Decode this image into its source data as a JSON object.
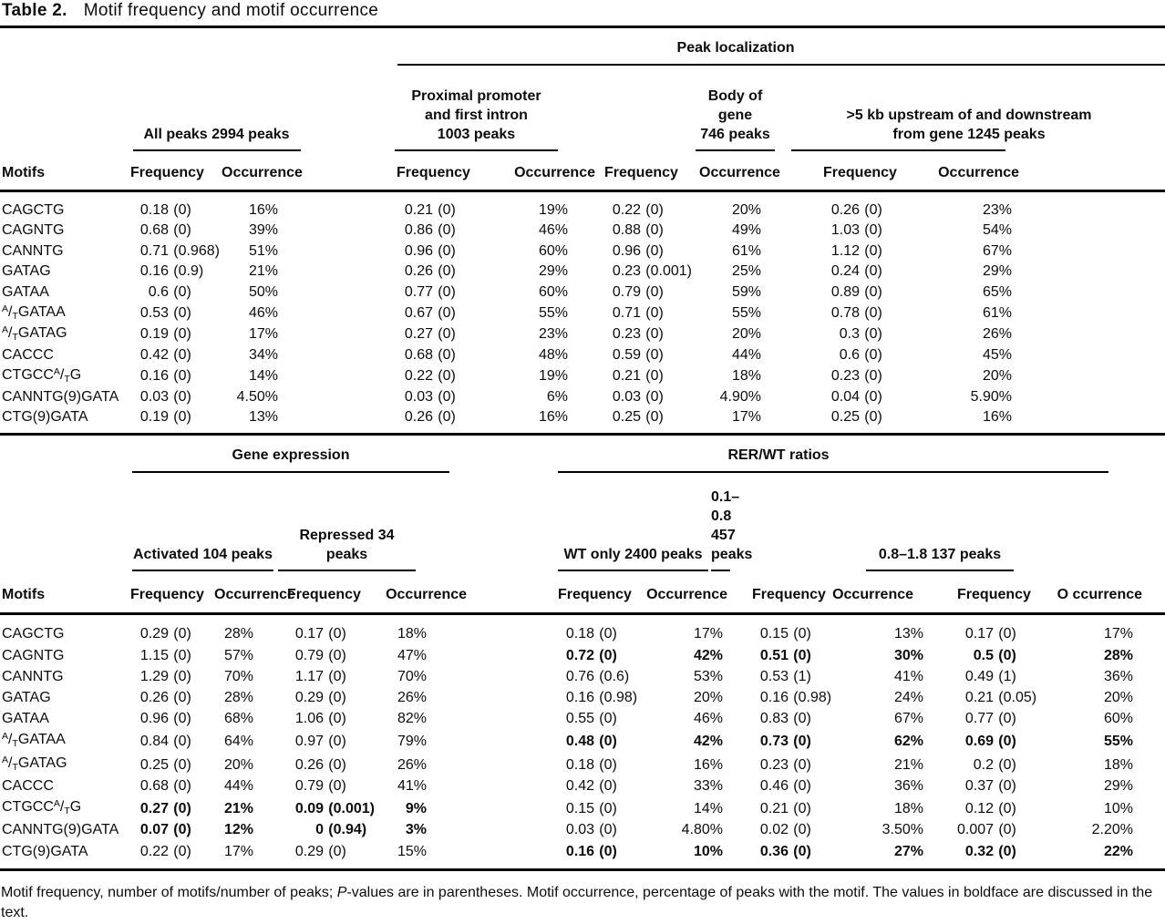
{
  "title": {
    "label": "Table 2.",
    "text": "Motif frequency and motif occurrence"
  },
  "upper_table": {
    "span_header": "Peak localization",
    "motifs_header": "Motifs",
    "groups": [
      {
        "lines": [
          "All peaks 2994 peaks"
        ],
        "freq_header": "Frequency",
        "occ_header": "Occurrence"
      },
      {
        "lines": [
          "Proximal promoter",
          "and first intron",
          "1003 peaks"
        ],
        "freq_header": "Frequency",
        "occ_header": "Occurrence"
      },
      {
        "lines": [
          "Body of gene",
          "746 peaks"
        ],
        "freq_header": "Frequency",
        "occ_header": "Occurrence"
      },
      {
        "lines": [
          ">5 kb upstream of and downstream",
          "from gene 1245 peaks"
        ],
        "freq_header": "Frequency",
        "occ_header": "Occurrence"
      }
    ],
    "rows": [
      {
        "motif": "CAGCTG",
        "cells": [
          {
            "f": "0.18 (0)",
            "o": "16%"
          },
          {
            "f": "0.21 (0)",
            "o": "19%"
          },
          {
            "f": "0.22 (0)",
            "o": "20%"
          },
          {
            "f": "0.26 (0)",
            "o": "23%"
          }
        ]
      },
      {
        "motif": "CAGNTG",
        "cells": [
          {
            "f": "0.68 (0)",
            "o": "39%"
          },
          {
            "f": "0.86 (0)",
            "o": "46%"
          },
          {
            "f": "0.88 (0)",
            "o": "49%"
          },
          {
            "f": "1.03 (0)",
            "o": "54%"
          }
        ]
      },
      {
        "motif": "CANNTG",
        "cells": [
          {
            "f": "0.71 (0.968)",
            "o": "51%"
          },
          {
            "f": "0.96 (0)",
            "o": "60%"
          },
          {
            "f": "0.96 (0)",
            "o": "61%"
          },
          {
            "f": "1.12 (0)",
            "o": "67%"
          }
        ]
      },
      {
        "motif": "GATAG",
        "cells": [
          {
            "f": "0.16 (0.9)",
            "o": "21%"
          },
          {
            "f": "0.26 (0)",
            "o": "29%"
          },
          {
            "f": "0.23 (0.001)",
            "o": "25%"
          },
          {
            "f": "0.24 (0)",
            "o": "29%"
          }
        ]
      },
      {
        "motif": "GATAA",
        "cells": [
          {
            "f": "0.6 (0)",
            "o": "50%"
          },
          {
            "f": "0.77 (0)",
            "o": "60%"
          },
          {
            "f": "0.79 (0)",
            "o": "59%"
          },
          {
            "f": "0.89 (0)",
            "o": "65%"
          }
        ]
      },
      {
        "motif": "[A/T]GATAA",
        "cells": [
          {
            "f": "0.53 (0)",
            "o": "46%"
          },
          {
            "f": "0.67 (0)",
            "o": "55%"
          },
          {
            "f": "0.71 (0)",
            "o": "55%"
          },
          {
            "f": "0.78 (0)",
            "o": "61%"
          }
        ]
      },
      {
        "motif": "[A/T]GATAG",
        "cells": [
          {
            "f": "0.19 (0)",
            "o": "17%"
          },
          {
            "f": "0.27 (0)",
            "o": "23%"
          },
          {
            "f": "0.23 (0)",
            "o": "20%"
          },
          {
            "f": "0.3 (0)",
            "o": "26%"
          }
        ]
      },
      {
        "motif": "CACCC",
        "cells": [
          {
            "f": "0.42 (0)",
            "o": "34%"
          },
          {
            "f": "0.68 (0)",
            "o": "48%"
          },
          {
            "f": "0.59 (0)",
            "o": "44%"
          },
          {
            "f": "0.6 (0)",
            "o": "45%"
          }
        ]
      },
      {
        "motif": "CTGCC[A/T]G",
        "cells": [
          {
            "f": "0.16 (0)",
            "o": "14%"
          },
          {
            "f": "0.22 (0)",
            "o": "19%"
          },
          {
            "f": "0.21 (0)",
            "o": "18%"
          },
          {
            "f": "0.23 (0)",
            "o": "20%"
          }
        ]
      },
      {
        "motif": "CANNTG(9)GATA",
        "cells": [
          {
            "f": "0.03 (0)",
            "o": "4.50%"
          },
          {
            "f": "0.03 (0)",
            "o": "6%"
          },
          {
            "f": "0.03 (0)",
            "o": "4.90%"
          },
          {
            "f": "0.04 (0)",
            "o": "5.90%"
          }
        ]
      },
      {
        "motif": "CTG(9)GATA",
        "cells": [
          {
            "f": "0.19 (0)",
            "o": "13%"
          },
          {
            "f": "0.26 (0)",
            "o": "16%"
          },
          {
            "f": "0.25 (0)",
            "o": "17%"
          },
          {
            "f": "0.25 (0)",
            "o": "16%"
          }
        ]
      }
    ]
  },
  "lower_table": {
    "span_headers": [
      {
        "label": "Gene expression",
        "span": 2
      },
      {
        "label": "RER/WT ratios",
        "span": 3
      }
    ],
    "motifs_header": "Motifs",
    "groups": [
      {
        "lines": [
          "Activated 104 peaks"
        ],
        "freq_header": "Frequency",
        "occ_header": "Occurrence"
      },
      {
        "lines": [
          "Repressed 34 peaks"
        ],
        "freq_header": "Frequency",
        "occ_header": "Occurrence"
      },
      {
        "lines": [
          "WT only 2400 peaks"
        ],
        "freq_header": "Frequency",
        "occ_header": "Occurrence"
      },
      {
        "lines": [
          "0.1–0.8 457 peaks"
        ],
        "freq_header": "Frequency",
        "occ_header": "Occurrence"
      },
      {
        "lines": [
          "0.8–1.8 137 peaks"
        ],
        "freq_header": "Frequency",
        "occ_header": "O ccurrence"
      }
    ],
    "rows": [
      {
        "motif": "CAGCTG",
        "cells": [
          {
            "f": "0.29 (0)",
            "o": "28%"
          },
          {
            "f": "0.17 (0)",
            "o": "18%"
          },
          {
            "f": "0.18 (0)",
            "o": "17%"
          },
          {
            "f": "0.15 (0)",
            "o": "13%"
          },
          {
            "f": "0.17 (0)",
            "o": "17%"
          }
        ]
      },
      {
        "motif": "CAGNTG",
        "cells": [
          {
            "f": "1.15 (0)",
            "o": "57%"
          },
          {
            "f": "0.79 (0)",
            "o": "47%"
          },
          {
            "f": "0.72 (0)",
            "o": "42%",
            "b": true
          },
          {
            "f": "0.51 (0)",
            "o": "30%",
            "b": true
          },
          {
            "f": "0.5 (0)",
            "o": "28%",
            "b": true
          }
        ]
      },
      {
        "motif": "CANNTG",
        "cells": [
          {
            "f": "1.29 (0)",
            "o": "70%"
          },
          {
            "f": "1.17 (0)",
            "o": "70%"
          },
          {
            "f": "0.76 (0.6)",
            "o": "53%"
          },
          {
            "f": "0.53 (1)",
            "o": "41%"
          },
          {
            "f": "0.49 (1)",
            "o": "36%"
          }
        ]
      },
      {
        "motif": "GATAG",
        "cells": [
          {
            "f": "0.26 (0)",
            "o": "28%"
          },
          {
            "f": "0.29 (0)",
            "o": "26%"
          },
          {
            "f": "0.16 (0.98)",
            "o": "20%"
          },
          {
            "f": "0.16 (0.98)",
            "o": "24%"
          },
          {
            "f": "0.21 (0.05)",
            "o": "20%"
          }
        ]
      },
      {
        "motif": "GATAA",
        "cells": [
          {
            "f": "0.96 (0)",
            "o": "68%"
          },
          {
            "f": "1.06 (0)",
            "o": "82%"
          },
          {
            "f": "0.55 (0)",
            "o": "46%"
          },
          {
            "f": "0.83 (0)",
            "o": "67%"
          },
          {
            "f": "0.77 (0)",
            "o": "60%"
          }
        ]
      },
      {
        "motif": "[A/T]GATAA",
        "cells": [
          {
            "f": "0.84 (0)",
            "o": "64%"
          },
          {
            "f": "0.97 (0)",
            "o": "79%"
          },
          {
            "f": "0.48 (0)",
            "o": "42%",
            "b": true
          },
          {
            "f": "0.73 (0)",
            "o": "62%",
            "b": true
          },
          {
            "f": "0.69 (0)",
            "o": "55%",
            "b": true
          }
        ]
      },
      {
        "motif": "[A/T]GATAG",
        "cells": [
          {
            "f": "0.25 (0)",
            "o": "20%"
          },
          {
            "f": "0.26 (0)",
            "o": "26%"
          },
          {
            "f": "0.18 (0)",
            "o": "16%"
          },
          {
            "f": "0.23 (0)",
            "o": "21%"
          },
          {
            "f": "0.2 (0)",
            "o": "18%"
          }
        ]
      },
      {
        "motif": "CACCC",
        "cells": [
          {
            "f": "0.68 (0)",
            "o": "44%"
          },
          {
            "f": "0.79 (0)",
            "o": "41%"
          },
          {
            "f": "0.42 (0)",
            "o": "33%"
          },
          {
            "f": "0.46 (0)",
            "o": "36%"
          },
          {
            "f": "0.37 (0)",
            "o": "29%"
          }
        ]
      },
      {
        "motif": "CTGCC[A/T]G",
        "cells": [
          {
            "f": "0.27 (0)",
            "o": "21%",
            "b": true
          },
          {
            "f": "0.09 (0.001)",
            "o": "9%",
            "b": true
          },
          {
            "f": "0.15 (0)",
            "o": "14%"
          },
          {
            "f": "0.21 (0)",
            "o": "18%"
          },
          {
            "f": "0.12 (0)",
            "o": "10%"
          }
        ]
      },
      {
        "motif": "CANNTG(9)GATA",
        "cells": [
          {
            "f": "0.07 (0)",
            "o": "12%",
            "b": true
          },
          {
            "f": "0 (0.94)",
            "o": "3%",
            "b": true
          },
          {
            "f": "0.03 (0)",
            "o": "4.80%"
          },
          {
            "f": "0.02 (0)",
            "o": "3.50%"
          },
          {
            "f": "0.007 (0)",
            "o": "2.20%"
          }
        ]
      },
      {
        "motif": "CTG(9)GATA",
        "cells": [
          {
            "f": "0.22 (0)",
            "o": "17%"
          },
          {
            "f": "0.29 (0)",
            "o": "15%"
          },
          {
            "f": "0.16 (0)",
            "o": "10%",
            "b": true
          },
          {
            "f": "0.36 (0)",
            "o": "27%",
            "b": true
          },
          {
            "f": "0.32 (0)",
            "o": "22%",
            "b": true
          }
        ]
      }
    ]
  },
  "footnote": {
    "part1": "Motif frequency, number of motifs/number of peaks; ",
    "italic": "P",
    "part2": "-values are in parentheses. Motif occurrence, percentage of peaks with the motif. The values in boldface are discussed in the text."
  }
}
